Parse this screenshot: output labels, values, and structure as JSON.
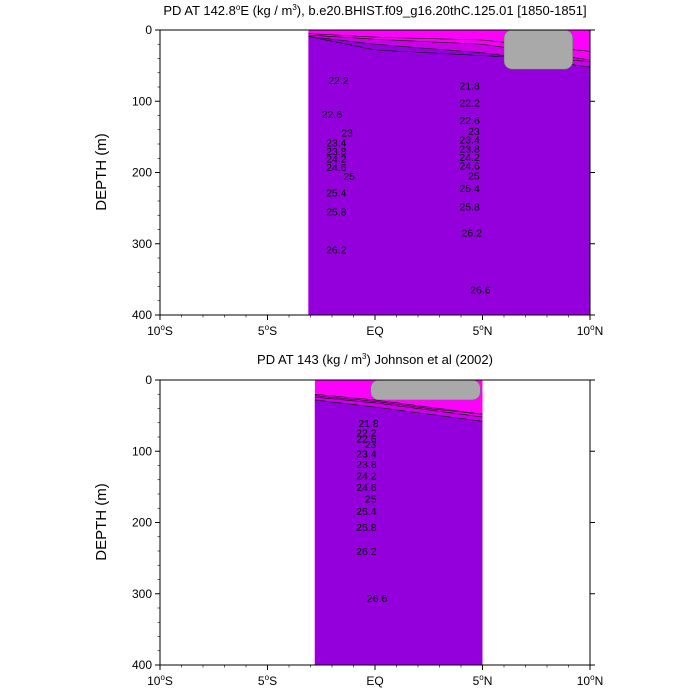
{
  "chart_data": [
    {
      "type": "contour",
      "title_prefix": "PD AT 142.8",
      "title_deg": "o",
      "title_mid": "E (kg / m",
      "title_sup": "3",
      "title_suffix": "), b.e20.BHIST.f09_g16.20thC.125.01 [1850-1851]",
      "ylabel": "DEPTH (m)",
      "xlim": [
        -10,
        10
      ],
      "ylim": [
        400,
        0
      ],
      "data_xlim": [
        -3.1,
        10
      ],
      "yticks": [
        0,
        100,
        200,
        300,
        400
      ],
      "xticks": [
        {
          "value": -10,
          "num": "10",
          "deg": "o",
          "hem": "S"
        },
        {
          "value": -5,
          "num": "5",
          "deg": "o",
          "hem": "S"
        },
        {
          "value": 0,
          "num": "EQ",
          "deg": "",
          "hem": ""
        },
        {
          "value": 5,
          "num": "5",
          "deg": "o",
          "hem": "N"
        },
        {
          "value": 10,
          "num": "10",
          "deg": "o",
          "hem": "N"
        }
      ],
      "levels": [
        21.4,
        21.6,
        21.8,
        22.0,
        22.2,
        22.4,
        22.6,
        22.8,
        23.0,
        23.2,
        23.4,
        23.6,
        23.8,
        24.0,
        24.2,
        24.4,
        24.6,
        24.8,
        25.0,
        25.2,
        25.4,
        25.6,
        25.8,
        26.0,
        26.2,
        26.4,
        26.6
      ],
      "level_depths": [
        {
          "x": [
            -3.1,
            0,
            5,
            10
          ],
          "d": [
            [
              5,
              9,
              7,
              9
            ],
            [
              10,
              28,
              13,
              20
            ],
            [
              14,
              36,
              20,
              32
            ],
            [
              30,
              44,
              42,
              52
            ],
            [
              62,
              70,
              84,
              80
            ],
            [
              80,
              88,
              98,
              92
            ],
            [
              106,
              112,
              118,
              108
            ],
            [
              118,
              124,
              130,
              120
            ],
            [
              128,
              134,
              140,
              130
            ],
            [
              136,
              142,
              148,
              138
            ],
            [
              144,
              150,
              156,
              144
            ],
            [
              150,
              156,
              162,
              150
            ],
            [
              158,
              164,
              170,
              156
            ],
            [
              164,
              170,
              176,
              162
            ],
            [
              172,
              177,
              182,
              170
            ],
            [
              180,
              184,
              188,
              178
            ],
            [
              188,
              191,
              195,
              186
            ],
            [
              196,
              199,
              202,
              194
            ],
            [
              204,
              206,
              209,
              200
            ],
            [
              212,
              214,
              217,
              208
            ],
            [
              222,
              224,
              225,
              216
            ],
            [
              232,
              233,
              234,
              226
            ],
            [
              242,
              242,
              244,
              236
            ],
            [
              262,
              258,
              255,
              248
            ],
            [
              284,
              278,
              272,
              262
            ],
            [
              310,
              300,
              288,
              282
            ],
            [
              385,
              370,
              340,
              310
            ]
          ]
        }
      ],
      "missing": [
        {
          "x0": 6.0,
          "x1": 9.2,
          "d0": 0,
          "d1": 55
        }
      ],
      "labels": [
        {
          "text": "22.2",
          "x": -1.7,
          "d": 70
        },
        {
          "text": "22.6",
          "x": -2.0,
          "d": 118
        },
        {
          "text": "23",
          "x": -1.3,
          "d": 144
        },
        {
          "text": "23.4",
          "x": -1.8,
          "d": 158
        },
        {
          "text": "23.8",
          "x": -1.8,
          "d": 170
        },
        {
          "text": "24.2",
          "x": -1.8,
          "d": 180
        },
        {
          "text": "24.6",
          "x": -1.8,
          "d": 192
        },
        {
          "text": "25",
          "x": -1.2,
          "d": 205
        },
        {
          "text": "25.4",
          "x": -1.8,
          "d": 228
        },
        {
          "text": "25.8",
          "x": -1.8,
          "d": 255
        },
        {
          "text": "26.2",
          "x": -1.8,
          "d": 308
        },
        {
          "text": "21.8",
          "x": 4.4,
          "d": 78
        },
        {
          "text": "22.2",
          "x": 4.4,
          "d": 102
        },
        {
          "text": "22.6",
          "x": 4.4,
          "d": 126
        },
        {
          "text": "23",
          "x": 4.6,
          "d": 142
        },
        {
          "text": "23.4",
          "x": 4.4,
          "d": 154
        },
        {
          "text": "23.8",
          "x": 4.4,
          "d": 166
        },
        {
          "text": "24.2",
          "x": 4.4,
          "d": 178
        },
        {
          "text": "24.6",
          "x": 4.4,
          "d": 190
        },
        {
          "text": "25",
          "x": 4.6,
          "d": 204
        },
        {
          "text": "25.4",
          "x": 4.4,
          "d": 222
        },
        {
          "text": "25.8",
          "x": 4.4,
          "d": 248
        },
        {
          "text": "26.2",
          "x": 4.5,
          "d": 284
        },
        {
          "text": "26.6",
          "x": 4.9,
          "d": 364
        }
      ]
    },
    {
      "type": "contour",
      "title_prefix": "PD AT 143 (kg / m",
      "title_deg": "",
      "title_mid": "",
      "title_sup": "3",
      "title_suffix": ") Johnson et al (2002)",
      "ylabel": "DEPTH (m)",
      "xlim": [
        -10,
        10
      ],
      "ylim": [
        400,
        0
      ],
      "data_xlim": [
        -2.8,
        5.0
      ],
      "yticks": [
        0,
        100,
        200,
        300,
        400
      ],
      "xticks": [
        {
          "value": -10,
          "num": "10",
          "deg": "o",
          "hem": "S"
        },
        {
          "value": -5,
          "num": "5",
          "deg": "o",
          "hem": "S"
        },
        {
          "value": 0,
          "num": "EQ",
          "deg": "",
          "hem": ""
        },
        {
          "value": 5,
          "num": "5",
          "deg": "o",
          "hem": "N"
        },
        {
          "value": 10,
          "num": "10",
          "deg": "o",
          "hem": "N"
        }
      ],
      "levels": [
        21.4,
        21.6,
        21.8,
        22.0,
        22.2,
        22.4,
        22.6,
        22.8,
        23.0,
        23.2,
        23.4,
        23.6,
        23.8,
        24.0,
        24.2,
        24.4,
        24.6,
        24.8,
        25.0,
        25.2,
        25.4,
        25.6,
        25.8,
        26.0,
        26.2,
        26.4,
        26.6
      ],
      "level_depths": [
        {
          "x": [
            -2.8,
            0,
            2.5,
            5.0
          ],
          "d": [
            [
              22,
              20,
              24,
              28
            ],
            [
              30,
              28,
              32,
              38
            ],
            [
              40,
              38,
              42,
              48
            ],
            [
              48,
              48,
              52,
              58
            ],
            [
              58,
              60,
              62,
              66
            ],
            [
              66,
              70,
              72,
              72
            ],
            [
              74,
              78,
              80,
              78
            ],
            [
              82,
              86,
              90,
              84
            ],
            [
              90,
              94,
              98,
              90
            ],
            [
              100,
              102,
              106,
              98
            ],
            [
              108,
              110,
              116,
              108
            ],
            [
              116,
              118,
              126,
              118
            ],
            [
              124,
              126,
              134,
              126
            ],
            [
              132,
              134,
              142,
              134
            ],
            [
              140,
              142,
              150,
              142
            ],
            [
              148,
              150,
              158,
              150
            ],
            [
              156,
              158,
              166,
              158
            ],
            [
              164,
              166,
              174,
              166
            ],
            [
              172,
              174,
              182,
              174
            ],
            [
              180,
              183,
              190,
              182
            ],
            [
              190,
              193,
              198,
              190
            ],
            [
              200,
              203,
              208,
              198
            ],
            [
              212,
              214,
              218,
              208
            ],
            [
              228,
              226,
              230,
              220
            ],
            [
              246,
              244,
              240,
              234
            ],
            [
              270,
              262,
              254,
              250
            ],
            [
              310,
              300,
              280,
              300
            ]
          ]
        }
      ],
      "missing": [
        {
          "x0": -0.2,
          "x1": 4.9,
          "d0": 0,
          "d1": 28
        }
      ],
      "labels": [
        {
          "text": "21.8",
          "x": -0.3,
          "d": 60
        },
        {
          "text": "22.2",
          "x": -0.4,
          "d": 74
        },
        {
          "text": "22.6",
          "x": -0.4,
          "d": 82
        },
        {
          "text": "23",
          "x": -0.2,
          "d": 90
        },
        {
          "text": "23.4",
          "x": -0.4,
          "d": 103
        },
        {
          "text": "23.8",
          "x": -0.4,
          "d": 118
        },
        {
          "text": "24.2",
          "x": -0.4,
          "d": 134
        },
        {
          "text": "24.6",
          "x": -0.4,
          "d": 150
        },
        {
          "text": "25",
          "x": -0.2,
          "d": 166
        },
        {
          "text": "25.4",
          "x": -0.4,
          "d": 184
        },
        {
          "text": "25.8",
          "x": -0.4,
          "d": 206
        },
        {
          "text": "26.2",
          "x": -0.4,
          "d": 240
        },
        {
          "text": "26.6",
          "x": 0.1,
          "d": 306
        }
      ]
    }
  ]
}
